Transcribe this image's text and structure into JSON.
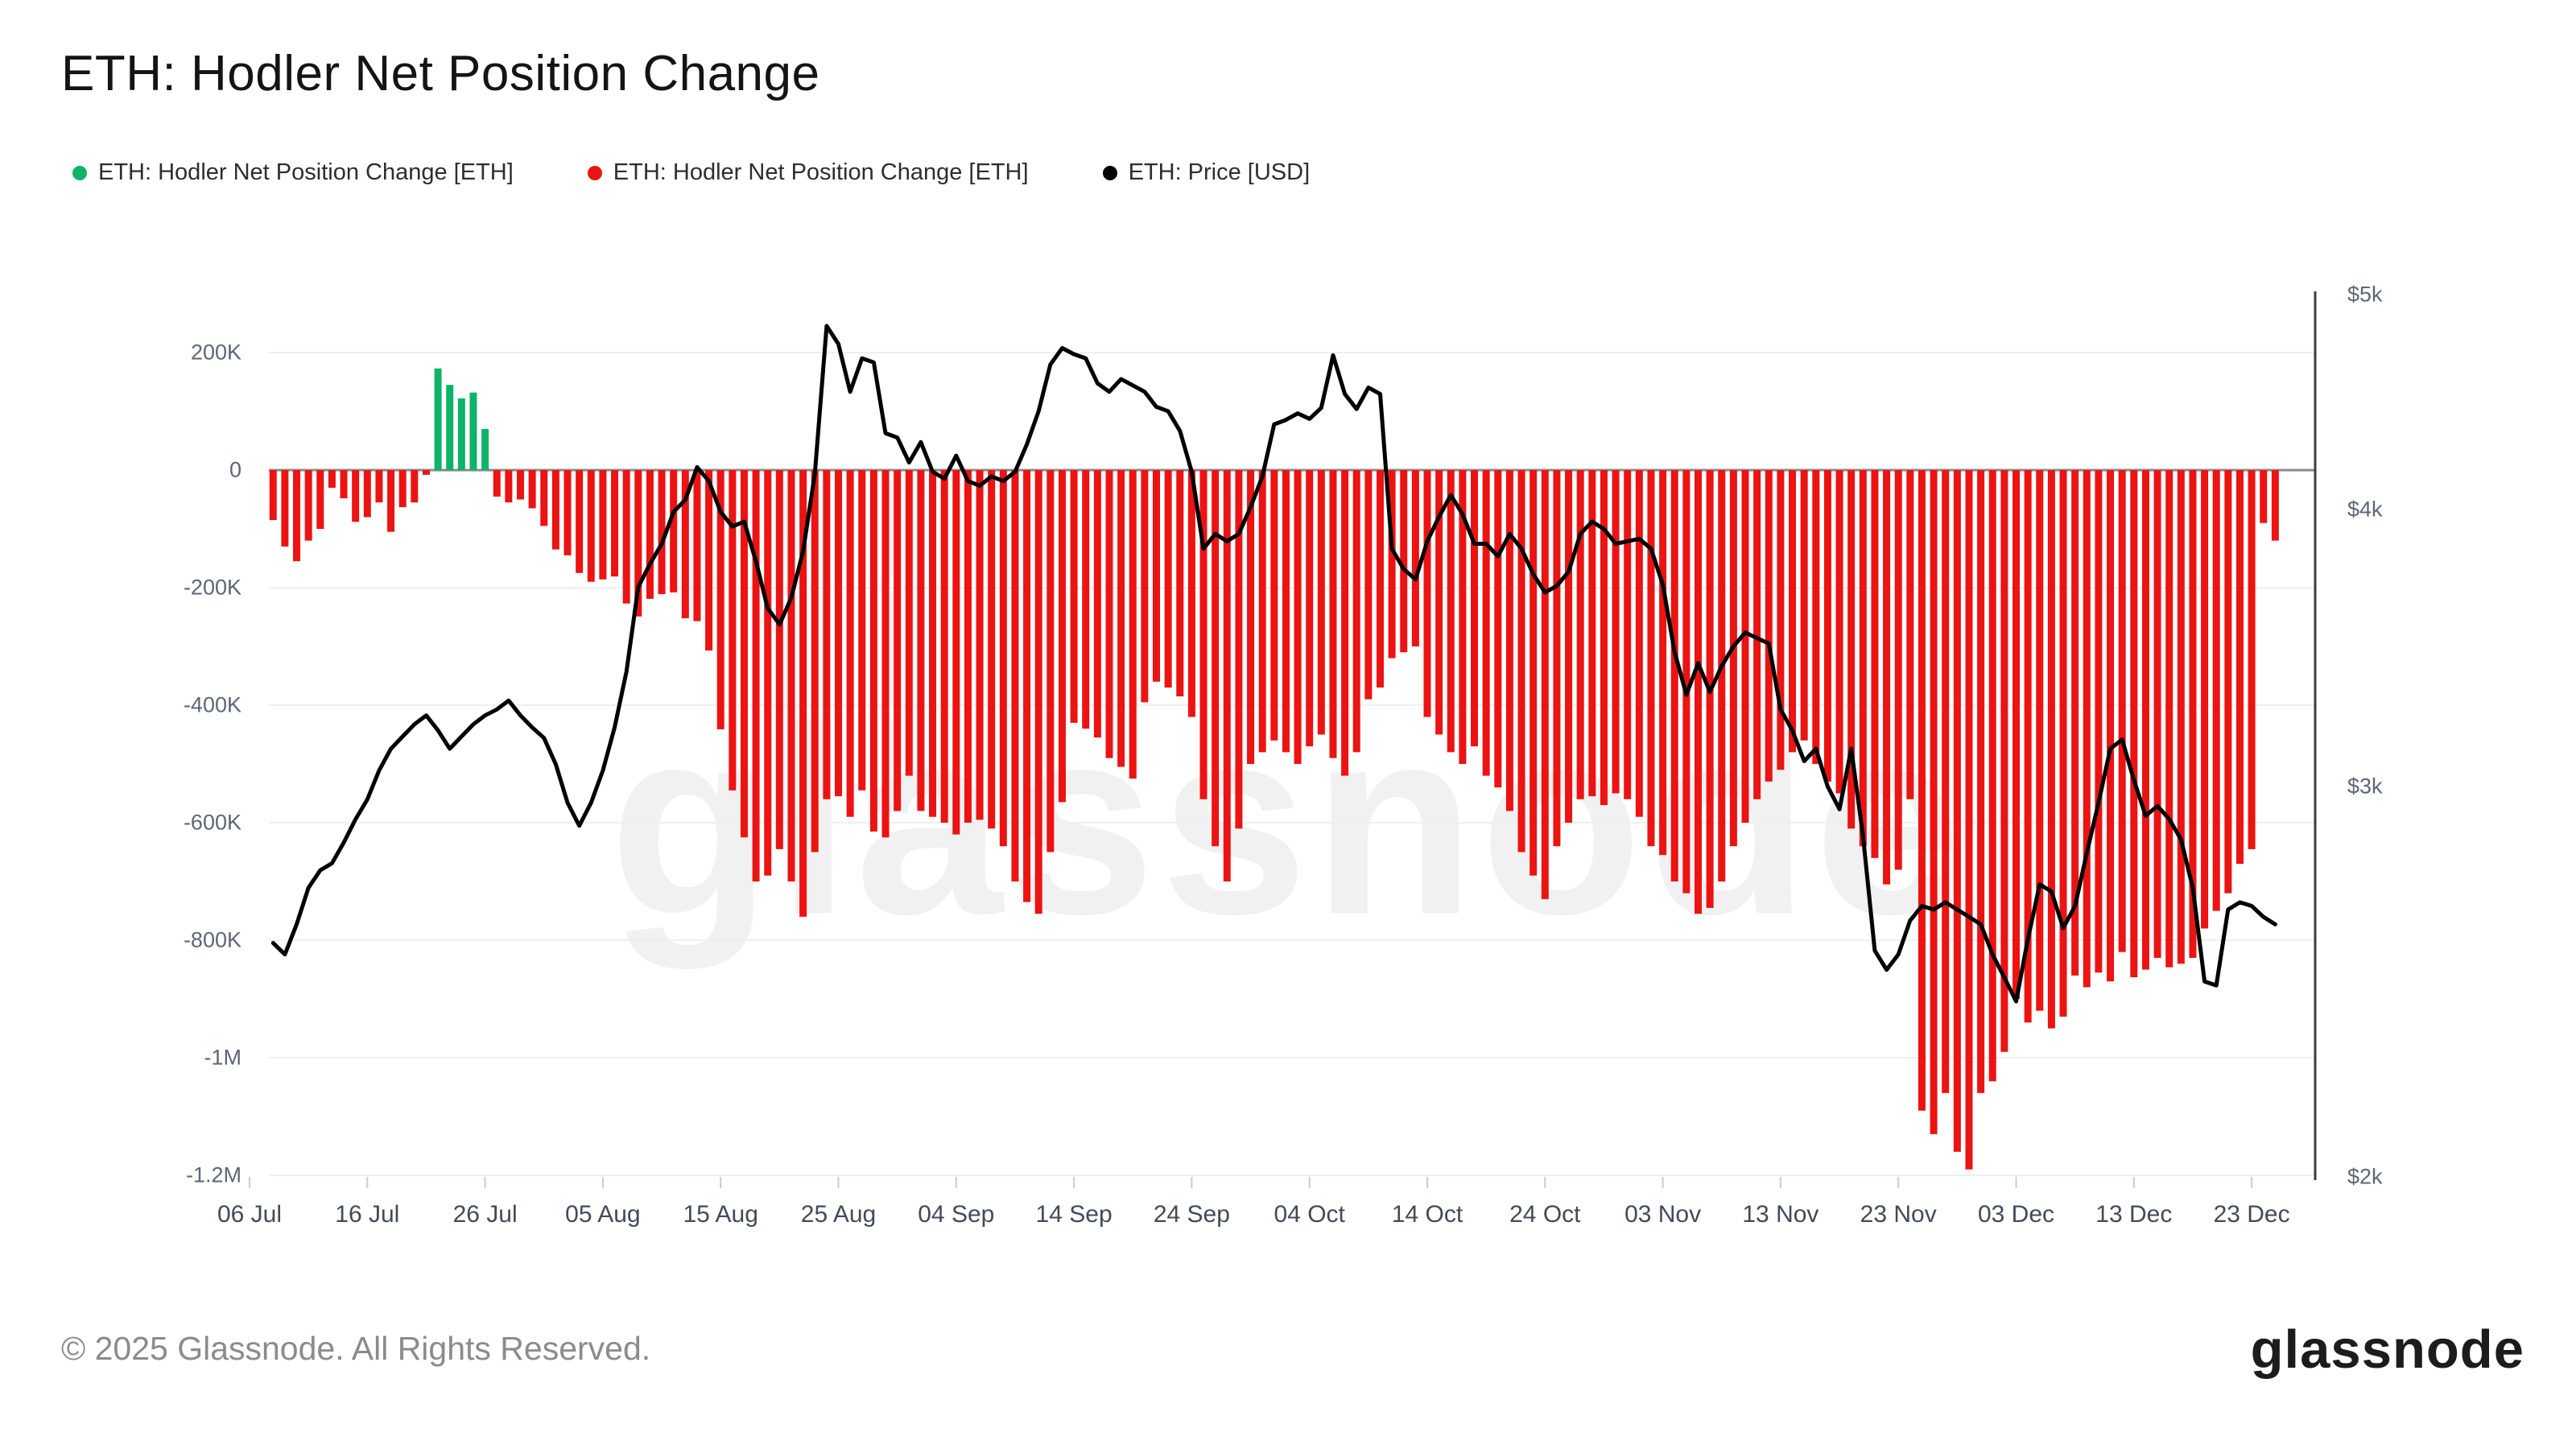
{
  "header": {
    "title": "ETH: Hodler Net Position Change"
  },
  "legend": {
    "items": [
      {
        "label": "ETH: Hodler Net Position Change [ETH]",
        "color": "#0db36a"
      },
      {
        "label": "ETH: Hodler Net Position Change [ETH]",
        "color": "#ec1313"
      },
      {
        "label": "ETH: Price [USD]",
        "color": "#000000"
      }
    ]
  },
  "watermark": {
    "text": "glassnode"
  },
  "footer": {
    "copyright": "© 2025 Glassnode. All Rights Reserved.",
    "logo_text": "glassnode"
  },
  "chart_data": {
    "type": "bar",
    "title": "ETH: Hodler Net Position Change",
    "unit_left": "ETH (thousands)",
    "unit_right": "USD (log scale)",
    "grid": "horizontal",
    "legend_position": "top-left",
    "ylim_left_keth": [
      -1200,
      200
    ],
    "ylim_right_usd": [
      2000,
      5000
    ],
    "y_left_ticks": [
      "200K",
      "0",
      "-200K",
      "-400K",
      "-600K",
      "-800K",
      "-1M",
      "-1.2M"
    ],
    "y_left_tick_values_keth": [
      200,
      0,
      -200,
      -400,
      -600,
      -800,
      -1000,
      -1200
    ],
    "y_right_ticks": [
      "$5k",
      "$4k",
      "$3k",
      "$2k"
    ],
    "y_right_tick_values_usd": [
      5000,
      4000,
      3000,
      2000
    ],
    "x_ticks": [
      "06 Jul",
      "16 Jul",
      "26 Jul",
      "05 Aug",
      "15 Aug",
      "25 Aug",
      "04 Sep",
      "14 Sep",
      "24 Sep",
      "04 Oct",
      "14 Oct",
      "24 Oct",
      "03 Nov",
      "13 Nov",
      "23 Nov",
      "03 Dec",
      "13 Dec",
      "23 Dec"
    ],
    "categories": [
      "07-08",
      "07-09",
      "07-10",
      "07-11",
      "07-12",
      "07-13",
      "07-14",
      "07-15",
      "07-16",
      "07-17",
      "07-18",
      "07-19",
      "07-20",
      "07-21",
      "07-22",
      "07-23",
      "07-24",
      "07-25",
      "07-26",
      "07-27",
      "07-28",
      "07-29",
      "07-30",
      "07-31",
      "08-01",
      "08-02",
      "08-03",
      "08-04",
      "08-05",
      "08-06",
      "08-07",
      "08-08",
      "08-09",
      "08-10",
      "08-11",
      "08-12",
      "08-13",
      "08-14",
      "08-15",
      "08-16",
      "08-17",
      "08-18",
      "08-19",
      "08-20",
      "08-21",
      "08-22",
      "08-23",
      "08-24",
      "08-25",
      "08-26",
      "08-27",
      "08-28",
      "08-29",
      "08-30",
      "08-31",
      "09-01",
      "09-02",
      "09-03",
      "09-04",
      "09-05",
      "09-06",
      "09-07",
      "09-08",
      "09-09",
      "09-10",
      "09-11",
      "09-12",
      "09-13",
      "09-14",
      "09-15",
      "09-16",
      "09-17",
      "09-18",
      "09-19",
      "09-20",
      "09-21",
      "09-22",
      "09-23",
      "09-24",
      "09-25",
      "09-26",
      "09-27",
      "09-28",
      "09-29",
      "09-30",
      "10-01",
      "10-02",
      "10-03",
      "10-04",
      "10-05",
      "10-06",
      "10-07",
      "10-08",
      "10-09",
      "10-10",
      "10-11",
      "10-12",
      "10-13",
      "10-14",
      "10-15",
      "10-16",
      "10-17",
      "10-18",
      "10-19",
      "10-20",
      "10-21",
      "10-22",
      "10-23",
      "10-24",
      "10-25",
      "10-26",
      "10-27",
      "10-28",
      "10-29",
      "10-30",
      "10-31",
      "11-01",
      "11-02",
      "11-03",
      "11-04",
      "11-05",
      "11-06",
      "11-07",
      "11-08",
      "11-09",
      "11-10",
      "11-11",
      "11-12",
      "11-13",
      "11-14",
      "11-15",
      "11-16",
      "11-17",
      "11-18",
      "11-19",
      "11-20",
      "11-21",
      "11-22",
      "11-23",
      "11-24",
      "11-25",
      "11-26",
      "11-27",
      "11-28",
      "11-29",
      "11-30",
      "12-01",
      "12-02",
      "12-03",
      "12-04",
      "12-05",
      "12-06",
      "12-07",
      "12-08",
      "12-09",
      "12-10",
      "12-11",
      "12-12",
      "12-13",
      "12-14",
      "12-15",
      "12-16",
      "12-17",
      "12-18",
      "12-19",
      "12-20",
      "12-21",
      "12-22",
      "12-23",
      "12-24",
      "12-25"
    ],
    "series": [
      {
        "name": "ETH: Hodler Net Position Change [ETH]",
        "unit": "kETH",
        "color_positive": "#0db36a",
        "color_negative": "#ec1313",
        "values": [
          -85,
          -130,
          -155,
          -120,
          -100,
          -30,
          -48,
          -88,
          -80,
          -55,
          -105,
          -63,
          -55,
          -8,
          173,
          145,
          122,
          132,
          70,
          -45,
          -55,
          -50,
          -65,
          -95,
          -135,
          -145,
          -175,
          -190,
          -186,
          -181,
          -227,
          -249,
          -219,
          -211,
          -208,
          -252,
          -257,
          -307,
          -441,
          -545,
          -625,
          -700,
          -690,
          -645,
          -700,
          -760,
          -650,
          -560,
          -555,
          -590,
          -545,
          -615,
          -625,
          -580,
          -520,
          -580,
          -590,
          -600,
          -620,
          -600,
          -595,
          -610,
          -640,
          -700,
          -735,
          -755,
          -650,
          -565,
          -430,
          -440,
          -455,
          -490,
          -505,
          -525,
          -395,
          -360,
          -370,
          -385,
          -420,
          -560,
          -640,
          -700,
          -610,
          -500,
          -480,
          -460,
          -480,
          -500,
          -470,
          -450,
          -490,
          -520,
          -480,
          -390,
          -370,
          -320,
          -310,
          -300,
          -420,
          -450,
          -480,
          -500,
          -470,
          -520,
          -540,
          -580,
          -650,
          -690,
          -730,
          -640,
          -600,
          -560,
          -555,
          -570,
          -550,
          -560,
          -590,
          -640,
          -655,
          -700,
          -720,
          -755,
          -745,
          -700,
          -640,
          -600,
          -560,
          -530,
          -510,
          -480,
          -460,
          -500,
          -530,
          -550,
          -610,
          -640,
          -660,
          -705,
          -680,
          -560,
          -1090,
          -1130,
          -1060,
          -1160,
          -1190,
          -1060,
          -1040,
          -990,
          -900,
          -940,
          -920,
          -950,
          -930,
          -860,
          -880,
          -855,
          -870,
          -820,
          -863,
          -850,
          -830,
          -846,
          -840,
          -830,
          -780,
          -750,
          -720,
          -670,
          -645,
          -90,
          -120
        ]
      },
      {
        "name": "ETH: Price [USD]",
        "unit": "USD",
        "color": "#000000",
        "values": [
          2550,
          2520,
          2600,
          2700,
          2750,
          2770,
          2830,
          2900,
          2960,
          3050,
          3120,
          3160,
          3200,
          3230,
          3180,
          3120,
          3160,
          3200,
          3230,
          3250,
          3280,
          3230,
          3190,
          3155,
          3070,
          2950,
          2880,
          2950,
          3050,
          3190,
          3380,
          3690,
          3780,
          3860,
          3990,
          4040,
          4180,
          4120,
          3990,
          3930,
          3950,
          3790,
          3610,
          3550,
          3650,
          3830,
          4150,
          4840,
          4750,
          4520,
          4680,
          4660,
          4330,
          4310,
          4200,
          4290,
          4160,
          4130,
          4230,
          4120,
          4100,
          4140,
          4120,
          4160,
          4280,
          4430,
          4650,
          4730,
          4700,
          4680,
          4560,
          4520,
          4580,
          4550,
          4520,
          4450,
          4430,
          4340,
          4160,
          3840,
          3900,
          3870,
          3900,
          4010,
          4140,
          4370,
          4390,
          4420,
          4395,
          4445,
          4695,
          4510,
          4440,
          4540,
          4510,
          3840,
          3760,
          3720,
          3870,
          3970,
          4060,
          3980,
          3860,
          3860,
          3810,
          3900,
          3840,
          3740,
          3670,
          3695,
          3750,
          3900,
          3950,
          3920,
          3860,
          3870,
          3880,
          3840,
          3700,
          3450,
          3300,
          3410,
          3310,
          3400,
          3470,
          3520,
          3500,
          3480,
          3250,
          3180,
          3080,
          3120,
          3000,
          2930,
          3120,
          2850,
          2530,
          2480,
          2520,
          2610,
          2650,
          2640,
          2660,
          2640,
          2620,
          2600,
          2520,
          2460,
          2400,
          2560,
          2710,
          2690,
          2590,
          2650,
          2800,
          2950,
          3120,
          3150,
          3020,
          2910,
          2940,
          2900,
          2840,
          2700,
          2450,
          2440,
          2640,
          2660,
          2650,
          2620,
          2600
        ]
      }
    ]
  }
}
